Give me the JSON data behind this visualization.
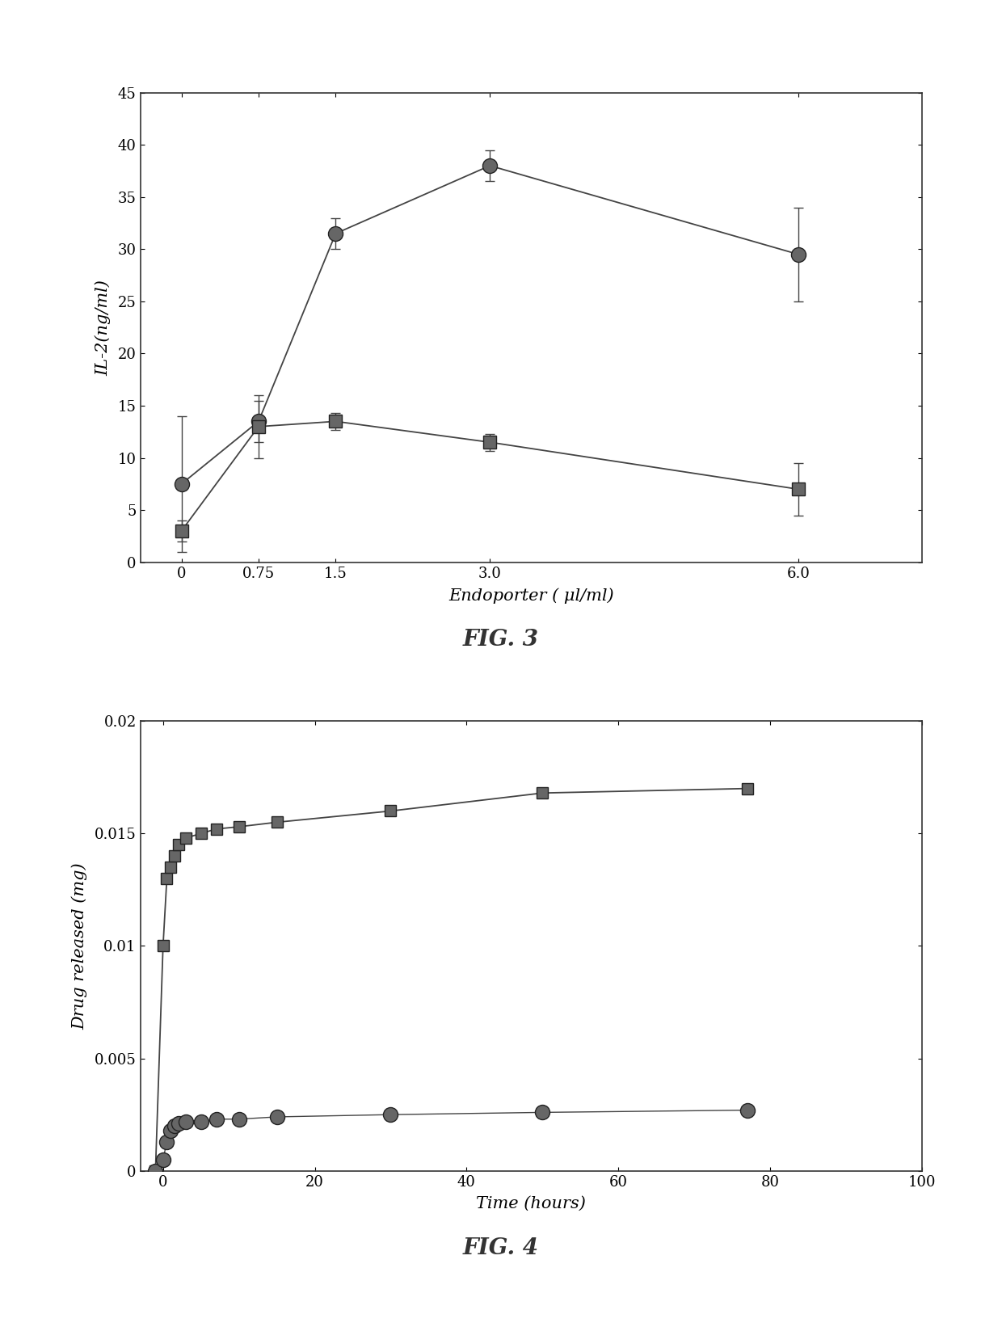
{
  "fig3": {
    "title": "FIG. 3",
    "xlabel": "Endoporter ( μl/ml)",
    "ylabel": "IL-2(ng/ml)",
    "xlim": [
      -0.4,
      7.2
    ],
    "ylim": [
      0,
      45
    ],
    "yticks": [
      0,
      5,
      10,
      15,
      20,
      25,
      30,
      35,
      40,
      45
    ],
    "xticks": [
      0,
      0.75,
      1.5,
      3.0,
      6.0
    ],
    "xtick_labels": [
      "0",
      "0.75",
      "1.5",
      "3.0",
      "6.0"
    ],
    "ytick_labels": [
      "0",
      "5",
      "10",
      "15",
      "20",
      "25",
      "30",
      "35",
      "40",
      "45"
    ],
    "series1": {
      "x": [
        0,
        0.75,
        1.5,
        3.0,
        6.0
      ],
      "y": [
        7.5,
        13.5,
        31.5,
        38.0,
        29.5
      ],
      "yerr": [
        6.5,
        2.0,
        1.5,
        1.5,
        4.5
      ],
      "marker": "o",
      "markersize": 13,
      "linewidth": 1.3
    },
    "series2": {
      "x": [
        0,
        0.75,
        1.5,
        3.0,
        6.0
      ],
      "y": [
        3.0,
        13.0,
        13.5,
        11.5,
        7.0
      ],
      "yerr": [
        1.0,
        3.0,
        0.8,
        0.8,
        2.5
      ],
      "marker": "s",
      "markersize": 12,
      "linewidth": 1.3
    }
  },
  "fig4": {
    "title": "FIG. 4",
    "xlabel": "Time (hours)",
    "ylabel": "Drug released (mg)",
    "xlim": [
      -3,
      100
    ],
    "ylim": [
      0,
      0.02
    ],
    "yticks": [
      0,
      0.005,
      0.01,
      0.015,
      0.02
    ],
    "xticks": [
      0,
      20,
      40,
      60,
      80,
      100
    ],
    "xtick_labels": [
      "0",
      "20",
      "40",
      "60",
      "80",
      "100"
    ],
    "ytick_labels": [
      "0",
      "0.005",
      "0.01",
      "0.015",
      "0.02"
    ],
    "series1": {
      "x": [
        -1,
        0,
        0.5,
        1,
        1.5,
        2,
        3,
        5,
        7,
        10,
        15,
        30,
        50,
        77
      ],
      "y": [
        0.0,
        0.01,
        0.013,
        0.0135,
        0.014,
        0.0145,
        0.0148,
        0.015,
        0.0152,
        0.0153,
        0.0155,
        0.016,
        0.0168,
        0.017
      ],
      "marker": "s",
      "markersize": 10,
      "linewidth": 1.3
    },
    "series2": {
      "x": [
        -1,
        0,
        0.5,
        1,
        1.5,
        2,
        3,
        5,
        7,
        10,
        15,
        30,
        50,
        77
      ],
      "y": [
        0.0,
        0.0005,
        0.0013,
        0.0018,
        0.002,
        0.0021,
        0.0022,
        0.0022,
        0.0023,
        0.0023,
        0.0024,
        0.0025,
        0.0026,
        0.0027
      ],
      "marker": "o",
      "markersize": 13,
      "linewidth": 1.0
    }
  },
  "marker_color": "#666666",
  "marker_edge_color": "#222222",
  "line_color": "#444444",
  "background_color": "#ffffff"
}
